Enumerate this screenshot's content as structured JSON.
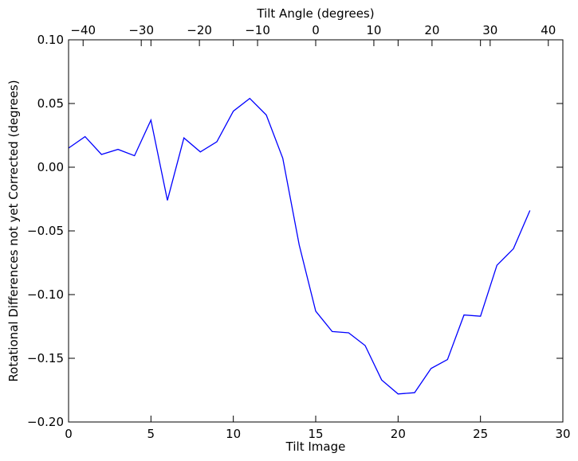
{
  "chart_data": {
    "type": "line",
    "xlabel": "Tilt Image",
    "ylabel": "Rotational Differences not yet Corrected (degrees)",
    "top_xlabel": "Tilt Angle (degrees)",
    "xlim": [
      0,
      30
    ],
    "ylim": [
      -0.2,
      0.1
    ],
    "top_xlim": [
      -42.5,
      42.5
    ],
    "x_ticks": [
      0,
      5,
      10,
      15,
      20,
      25,
      30
    ],
    "x_tick_labels": [
      "0",
      "5",
      "10",
      "15",
      "20",
      "25",
      "30"
    ],
    "y_ticks": [
      0.1,
      0.05,
      0.0,
      -0.05,
      -0.1,
      -0.15,
      -0.2
    ],
    "y_tick_labels": [
      "0.10",
      "0.05",
      "0.00",
      "−0.05",
      "−0.10",
      "−0.15",
      "−0.20"
    ],
    "top_x_ticks": [
      -40,
      -30,
      -20,
      -10,
      0,
      10,
      20,
      30,
      40
    ],
    "top_x_tick_labels": [
      "−40",
      "−30",
      "−20",
      "−10",
      "0",
      "10",
      "20",
      "30",
      "40"
    ],
    "grid": false,
    "series": [
      {
        "color": "#0000ff",
        "x": [
          0,
          1,
          2,
          3,
          4,
          5,
          6,
          7,
          8,
          9,
          10,
          11,
          12,
          13,
          14,
          15,
          16,
          17,
          18,
          19,
          20,
          21,
          22,
          23,
          24,
          25,
          26,
          27,
          28
        ],
        "y": [
          0.015,
          0.024,
          0.01,
          0.014,
          0.009,
          0.037,
          -0.026,
          0.023,
          0.012,
          0.02,
          0.044,
          0.054,
          0.041,
          0.007,
          -0.061,
          -0.113,
          -0.129,
          -0.13,
          -0.14,
          -0.167,
          -0.178,
          -0.177,
          -0.158,
          -0.151,
          -0.116,
          -0.117,
          -0.077,
          -0.064,
          -0.034
        ]
      }
    ]
  }
}
